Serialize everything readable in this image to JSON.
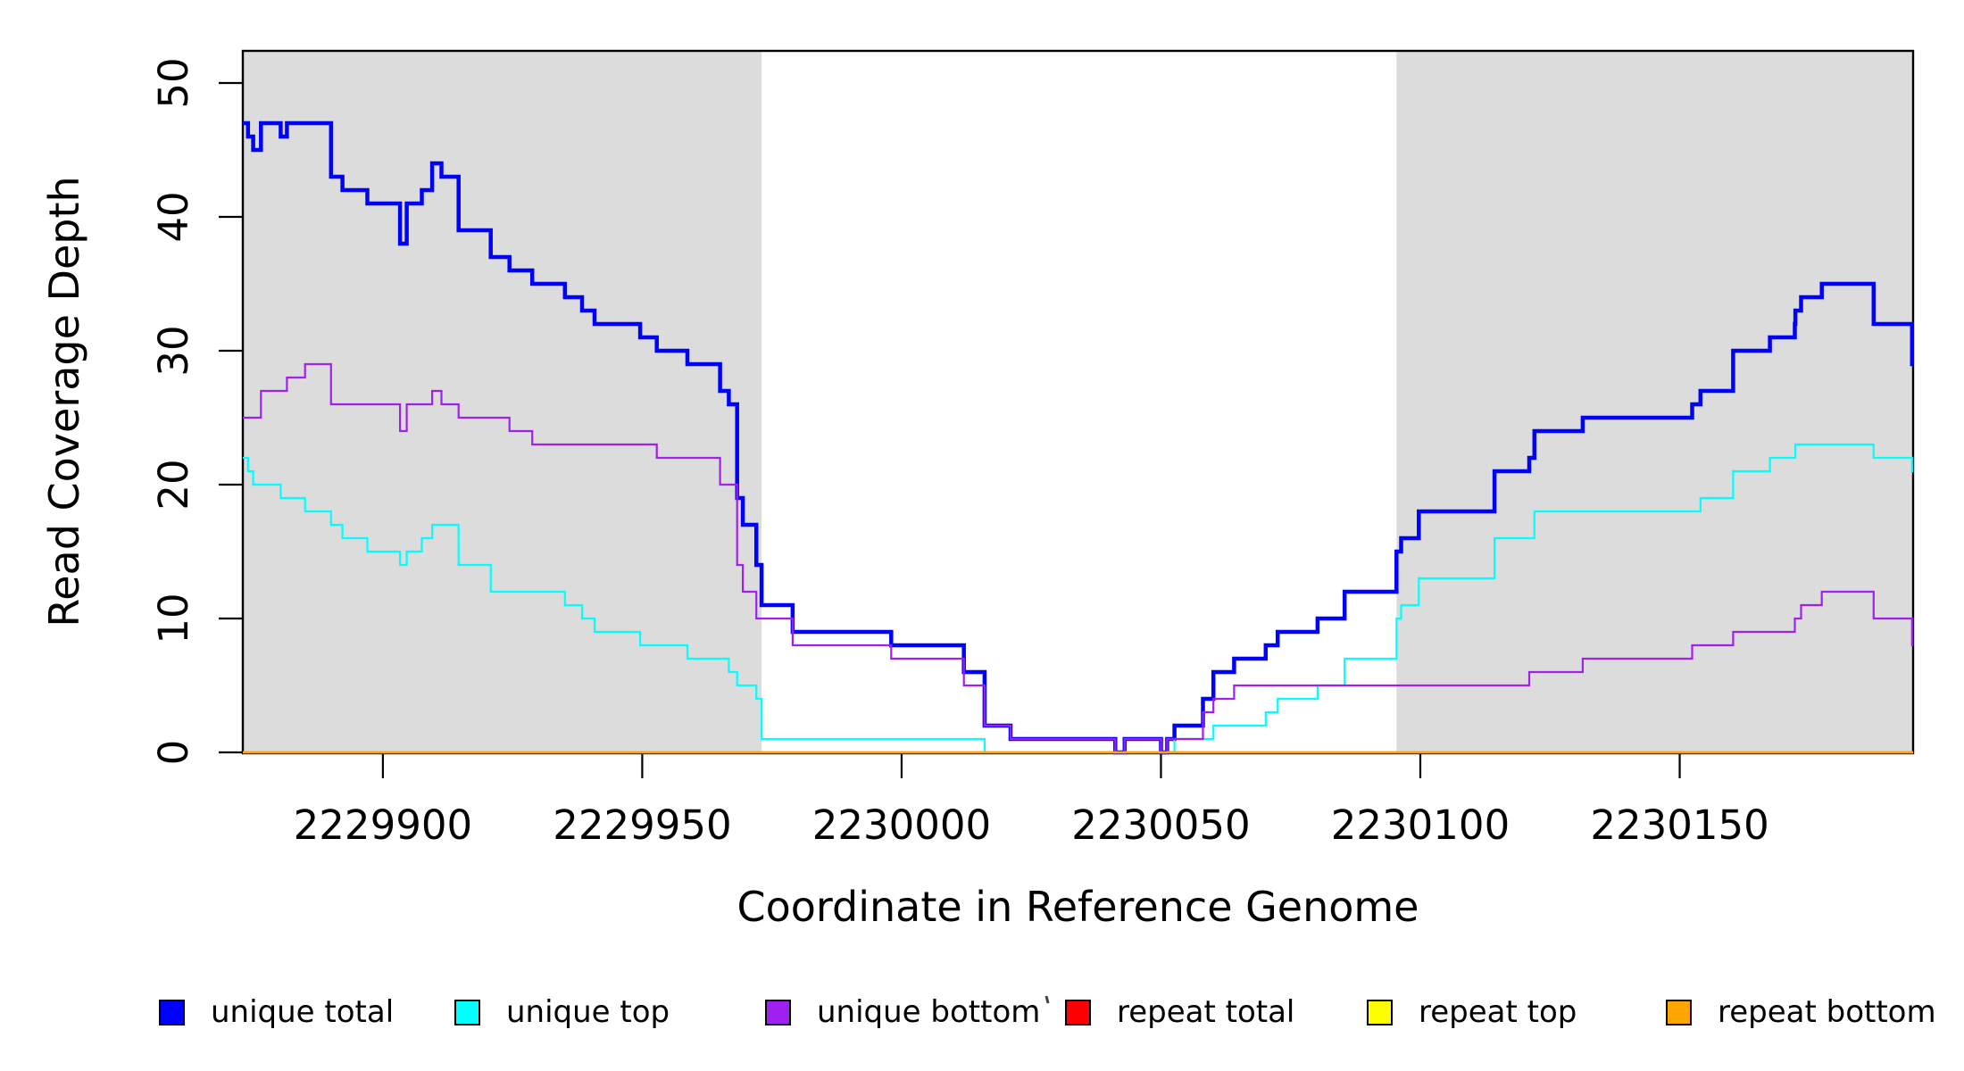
{
  "chart_data": {
    "type": "line",
    "subtype": "step-after",
    "title": "",
    "xlabel": "Coordinate in Reference Genome",
    "ylabel": "Read Coverage Depth",
    "xlim": [
      2229873,
      2230195
    ],
    "ylim": [
      0,
      52.5
    ],
    "grid": false,
    "x_ticks": [
      2229900,
      2229950,
      2230000,
      2230050,
      2230100,
      2230150
    ],
    "x_tick_labels": [
      "2229900",
      "2229950",
      "2230000",
      "2230050",
      "2230100",
      "2230150"
    ],
    "y_ticks": [
      0,
      10,
      20,
      30,
      40,
      50
    ],
    "y_tick_labels": [
      "0",
      "10",
      "20",
      "30",
      "40",
      "50"
    ],
    "shaded_regions": [
      {
        "x0": 2229873,
        "x1": 2229973,
        "color": "#DCDCDC"
      },
      {
        "x0": 2230095.4,
        "x1": 2230195,
        "color": "#DCDCDC"
      }
    ],
    "series": [
      {
        "name": "unique total",
        "color": "#0000FF",
        "width": 4.5,
        "points": [
          [
            2229873,
            47
          ],
          [
            2229874,
            46
          ],
          [
            2229875,
            45
          ],
          [
            2229876.5,
            47
          ],
          [
            2229880.3,
            46
          ],
          [
            2229881.5,
            47
          ],
          [
            2229890,
            43
          ],
          [
            2229892.2,
            42
          ],
          [
            2229897,
            41
          ],
          [
            2229903.3,
            38
          ],
          [
            2229904.6,
            41
          ],
          [
            2229907.5,
            42
          ],
          [
            2229909.5,
            44
          ],
          [
            2229911.3,
            43
          ],
          [
            2229914.6,
            39
          ],
          [
            2229920.8,
            37
          ],
          [
            2229924.4,
            36
          ],
          [
            2229928.8,
            35
          ],
          [
            2229935.1,
            34
          ],
          [
            2229938.4,
            33
          ],
          [
            2229940.8,
            32
          ],
          [
            2229949.6,
            31
          ],
          [
            2229952.8,
            30
          ],
          [
            2229958.7,
            29
          ],
          [
            2229965,
            27
          ],
          [
            2229966.7,
            26
          ],
          [
            2229968.3,
            19
          ],
          [
            2229969.4,
            17
          ],
          [
            2229972,
            14
          ],
          [
            2229973,
            11
          ],
          [
            2229979,
            9
          ],
          [
            2229998,
            8
          ],
          [
            2230012,
            6
          ],
          [
            2230016,
            2
          ],
          [
            2230021,
            1
          ],
          [
            2230041.2,
            0
          ],
          [
            2230043,
            1
          ],
          [
            2230050,
            0
          ],
          [
            2230051.2,
            1
          ],
          [
            2230052.6,
            2
          ],
          [
            2230058.1,
            4
          ],
          [
            2230060.1,
            6
          ],
          [
            2230064.1,
            7
          ],
          [
            2230070.2,
            8
          ],
          [
            2230072.5,
            9
          ],
          [
            2230080.2,
            10
          ],
          [
            2230085.4,
            12
          ],
          [
            2230095.4,
            15
          ],
          [
            2230096.3,
            16
          ],
          [
            2230099.7,
            18
          ],
          [
            2230114.3,
            21
          ],
          [
            2230121,
            22
          ],
          [
            2230122,
            24
          ],
          [
            2230131.3,
            25
          ],
          [
            2230152.4,
            26
          ],
          [
            2230154,
            27
          ],
          [
            2230160.3,
            30
          ],
          [
            2230167.4,
            31
          ],
          [
            2230172.2,
            32
          ],
          [
            2230172.3,
            33
          ],
          [
            2230173.4,
            34
          ],
          [
            2230177.4,
            35
          ],
          [
            2230187.4,
            32
          ],
          [
            2230194.8,
            29
          ]
        ]
      },
      {
        "name": "unique top",
        "color": "#00FFFF",
        "width": 2.2,
        "points": [
          [
            2229873,
            22
          ],
          [
            2229874,
            21
          ],
          [
            2229875,
            20
          ],
          [
            2229880.3,
            19
          ],
          [
            2229885,
            18
          ],
          [
            2229890,
            17
          ],
          [
            2229892.2,
            16
          ],
          [
            2229897,
            15
          ],
          [
            2229903.3,
            14
          ],
          [
            2229904.6,
            15
          ],
          [
            2229907.5,
            16
          ],
          [
            2229909.5,
            17
          ],
          [
            2229914.6,
            14
          ],
          [
            2229920.8,
            12
          ],
          [
            2229935.1,
            11
          ],
          [
            2229938.4,
            10
          ],
          [
            2229940.8,
            9
          ],
          [
            2229949.6,
            8
          ],
          [
            2229958.7,
            7
          ],
          [
            2229966.7,
            6
          ],
          [
            2229968.3,
            5
          ],
          [
            2229972,
            4
          ],
          [
            2229973,
            1
          ],
          [
            2230016,
            0
          ],
          [
            2230052.6,
            1
          ],
          [
            2230060.1,
            2
          ],
          [
            2230070.2,
            3
          ],
          [
            2230072.5,
            4
          ],
          [
            2230080.2,
            5
          ],
          [
            2230085.4,
            7
          ],
          [
            2230095.4,
            10
          ],
          [
            2230096.3,
            11
          ],
          [
            2230099.7,
            13
          ],
          [
            2230114.3,
            16
          ],
          [
            2230122,
            18
          ],
          [
            2230154,
            19
          ],
          [
            2230160.3,
            21
          ],
          [
            2230167.4,
            22
          ],
          [
            2230172.3,
            23
          ],
          [
            2230187.4,
            22
          ],
          [
            2230194.8,
            21
          ]
        ]
      },
      {
        "name": "unique bottom",
        "color": "#A020F0",
        "width": 2.2,
        "points": [
          [
            2229873,
            25
          ],
          [
            2229876.5,
            27
          ],
          [
            2229881.5,
            28
          ],
          [
            2229885,
            29
          ],
          [
            2229890,
            26
          ],
          [
            2229903.3,
            24
          ],
          [
            2229904.6,
            26
          ],
          [
            2229909.5,
            27
          ],
          [
            2229911.3,
            26
          ],
          [
            2229914.6,
            25
          ],
          [
            2229924.4,
            24
          ],
          [
            2229928.8,
            23
          ],
          [
            2229952.8,
            22
          ],
          [
            2229965,
            20
          ],
          [
            2229968.3,
            14
          ],
          [
            2229969.4,
            12
          ],
          [
            2229972,
            10
          ],
          [
            2229979,
            8
          ],
          [
            2229998,
            7
          ],
          [
            2230012,
            5
          ],
          [
            2230016,
            2
          ],
          [
            2230021,
            1
          ],
          [
            2230041.2,
            0
          ],
          [
            2230043,
            1
          ],
          [
            2230050,
            0
          ],
          [
            2230051.2,
            1
          ],
          [
            2230058.1,
            3
          ],
          [
            2230060.1,
            4
          ],
          [
            2230064.1,
            5
          ],
          [
            2230121,
            6
          ],
          [
            2230131.3,
            7
          ],
          [
            2230152.4,
            8
          ],
          [
            2230160.3,
            9
          ],
          [
            2230172.2,
            10
          ],
          [
            2230173.4,
            11
          ],
          [
            2230177.4,
            12
          ],
          [
            2230187.4,
            10
          ],
          [
            2230194.8,
            8
          ]
        ]
      },
      {
        "name": "repeat total",
        "color": "#FF0000",
        "width": 2.2,
        "points": [
          [
            2229873,
            0
          ]
        ]
      },
      {
        "name": "repeat top",
        "color": "#FFFF00",
        "width": 2.2,
        "points": [
          [
            2229873,
            0
          ]
        ]
      },
      {
        "name": "repeat bottom",
        "color": "#FFA500",
        "width": 2.6,
        "points": [
          [
            2229873,
            0
          ]
        ]
      }
    ],
    "legend": {
      "position": "bottom",
      "items": [
        {
          "label": "unique total",
          "color": "#0000FF"
        },
        {
          "label": "unique top",
          "color": "#00FFFF"
        },
        {
          "label": "unique bottom",
          "color": "#A020F0"
        },
        {
          "label": "repeat total",
          "color": "#FF0000"
        },
        {
          "label": "repeat top",
          "color": "#FFFF00"
        },
        {
          "label": "repeat bottom",
          "color": "#FFA500"
        }
      ]
    }
  }
}
